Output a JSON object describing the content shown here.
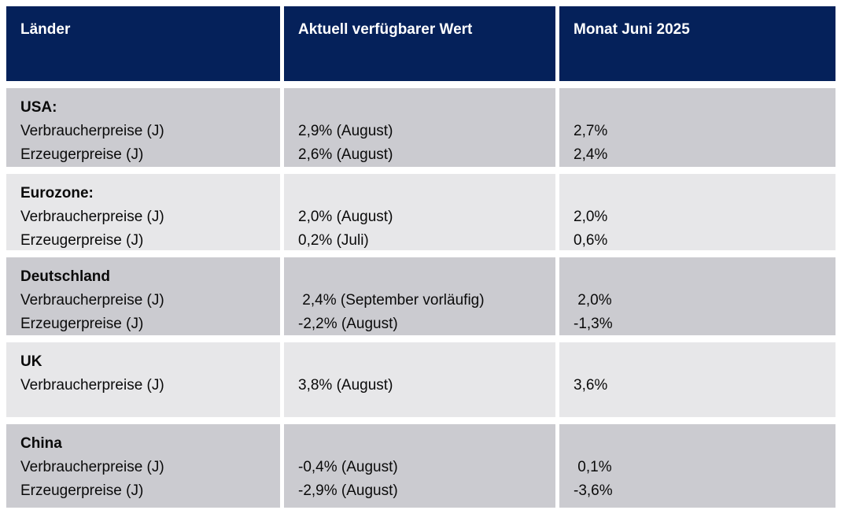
{
  "colors": {
    "header_bg": "#05215a",
    "header_text": "#ffffff",
    "row_dark_bg": "#cbcbd0",
    "row_light_bg": "#e7e7e9",
    "body_text": "#0a0a0a",
    "page_bg": "#ffffff"
  },
  "headers": [
    "Länder",
    "Aktuell verfügbarer Wert",
    "Monat Juni 2025"
  ],
  "rows": [
    {
      "country": "USA:",
      "labels": [
        "Verbraucherpreise (J)",
        "Erzeugerpreise (J)"
      ],
      "current": [
        "2,9% (August)",
        "2,6% (August)"
      ],
      "june": [
        "2,7%",
        "2,4%"
      ]
    },
    {
      "country": "Eurozone:",
      "labels": [
        "Verbraucherpreise (J)",
        "Erzeugerpreise (J)"
      ],
      "current": [
        "2,0% (August)",
        "0,2% (Juli)"
      ],
      "june": [
        "2,0%",
        "0,6%"
      ]
    },
    {
      "country": "Deutschland",
      "labels": [
        "Verbraucherpreise (J)",
        "Erzeugerpreise (J)"
      ],
      "current": [
        " 2,4% (September vorläufig)",
        "-2,2% (August)"
      ],
      "june": [
        " 2,0%",
        "-1,3%"
      ]
    },
    {
      "country": "UK",
      "labels": [
        "Verbraucherpreise (J)"
      ],
      "current": [
        "3,8% (August)"
      ],
      "june": [
        "3,6%"
      ]
    },
    {
      "country": "China",
      "labels": [
        "Verbraucherpreise (J)",
        "Erzeugerpreise (J)"
      ],
      "current": [
        "-0,4% (August)",
        "-2,9% (August)"
      ],
      "june": [
        " 0,1%",
        "-3,6%"
      ]
    }
  ],
  "chart_data": {
    "type": "table",
    "title": "",
    "columns": [
      "Länder",
      "Aktuell verfügbarer Wert",
      "Monat Juni 2025"
    ],
    "rows": [
      [
        "USA: Verbraucherpreise (J)",
        "2,9% (August)",
        "2,7%"
      ],
      [
        "USA: Erzeugerpreise (J)",
        "2,6% (August)",
        "2,4%"
      ],
      [
        "Eurozone: Verbraucherpreise (J)",
        "2,0% (August)",
        "2,0%"
      ],
      [
        "Eurozone: Erzeugerpreise (J)",
        "0,2% (Juli)",
        "0,6%"
      ],
      [
        "Deutschland Verbraucherpreise (J)",
        "2,4% (September vorläufig)",
        "2,0%"
      ],
      [
        "Deutschland Erzeugerpreise (J)",
        "-2,2% (August)",
        "-1,3%"
      ],
      [
        "UK Verbraucherpreise (J)",
        "3,8% (August)",
        "3,6%"
      ],
      [
        "China Verbraucherpreise (J)",
        "-0,4% (August)",
        "0,1%"
      ],
      [
        "China Erzeugerpreise (J)",
        "-2,9% (August)",
        "-3,6%"
      ]
    ]
  }
}
